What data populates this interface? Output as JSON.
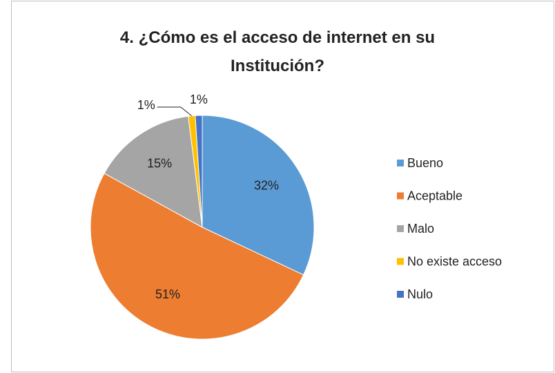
{
  "chart_data": {
    "type": "pie",
    "title": "4. ¿Cómo es el acceso de internet en su Institución?",
    "categories": [
      "Bueno",
      "Aceptable",
      "Malo",
      "No existe acceso",
      "Nulo"
    ],
    "values": [
      32,
      51,
      15,
      1,
      1
    ],
    "value_labels": [
      "32%",
      "51%",
      "15%",
      "1%",
      "1%"
    ],
    "colors": [
      "#5b9bd5",
      "#ed7d31",
      "#a5a5a5",
      "#ffc000",
      "#4472c4"
    ],
    "legend": "right"
  }
}
